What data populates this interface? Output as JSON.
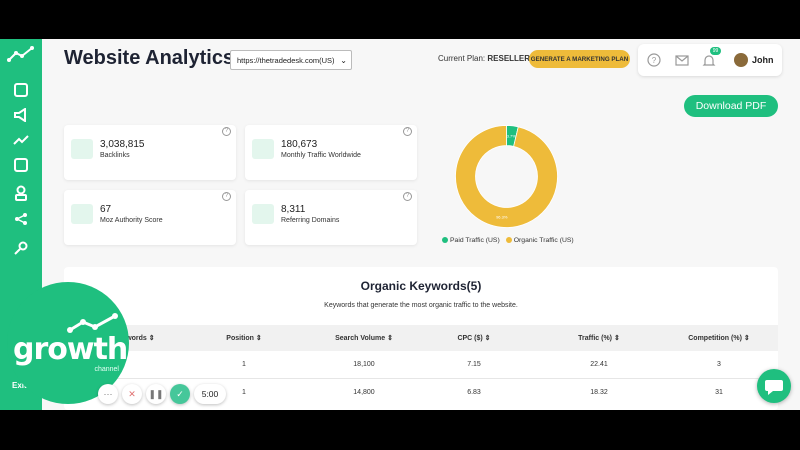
{
  "header": {
    "title": "Website Analytics",
    "site_select": "https://thetradedesk.com(US)",
    "plan_label": "Current Plan:",
    "plan_value": "RESELLER",
    "marketing_button": "GENERATE A MARKETING PLAN",
    "notification_count": "99",
    "user_name": "John"
  },
  "download_button": "Download PDF",
  "stats": [
    {
      "value": "3,038,815",
      "label": "Backlinks",
      "icon": "backlink-icon"
    },
    {
      "value": "180,673",
      "label": "Monthly Traffic Worldwide",
      "icon": "pulse-icon"
    },
    {
      "value": "67",
      "label": "Moz Authority Score",
      "icon": "target-icon"
    },
    {
      "value": "8,311",
      "label": "Referring Domains",
      "icon": "bars-icon"
    }
  ],
  "chart_data": {
    "type": "pie",
    "categories": [
      "Paid Traffic (US)",
      "Organic Traffic (US)"
    ],
    "values": [
      3.7,
      96.3
    ],
    "colors": [
      "#1fbf7f",
      "#eebb3a"
    ],
    "legend": "bottom"
  },
  "keywords": {
    "title": "Organic Keywords(5)",
    "subtitle": "Keywords that generate the most organic traffic to the website.",
    "columns": [
      "Keywords",
      "Position",
      "Search Volume",
      "CPC ($)",
      "Traffic (%)",
      "Competition (%)"
    ],
    "rows": [
      [
        "",
        "1",
        "18,100",
        "7.15",
        "22.41",
        "3"
      ],
      [
        "",
        "1",
        "14,800",
        "6.83",
        "18.32",
        "31"
      ]
    ]
  },
  "sidebar": {
    "exit_label": "Exit"
  },
  "overlay": {
    "brand_word": "growth",
    "brand_sub": "channel",
    "timer": "5:00"
  },
  "colors": {
    "accent": "#1fbf7f",
    "gold": "#eebb3a",
    "dark_text": "#1e2333"
  }
}
